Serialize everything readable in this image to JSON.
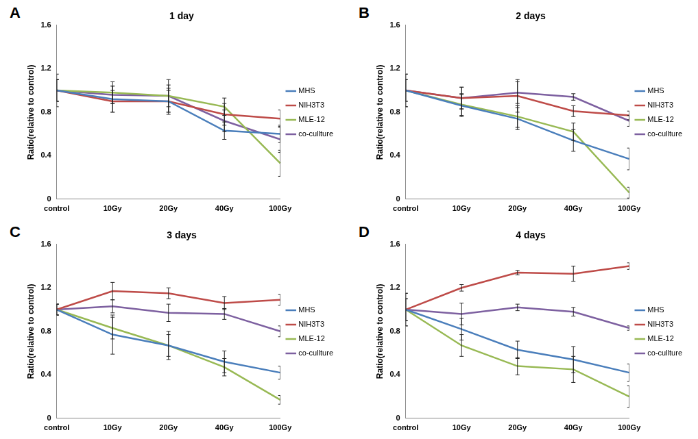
{
  "chart_data": [
    {
      "panel": "A",
      "type": "line",
      "title": "1 day",
      "y_label": "Ratio(relative to control)",
      "categories": [
        "control",
        "10Gy",
        "20Gy",
        "40Gy",
        "100Gy"
      ],
      "ylim": [
        0,
        1.6
      ],
      "yticks": [
        0,
        0.4,
        0.8,
        1.2,
        1.6
      ],
      "grid": false,
      "legend": "right",
      "marker": "none",
      "line_style": "solid",
      "series": [
        {
          "name": "MHS",
          "color": "#4a7ebb",
          "values": [
            1.0,
            0.92,
            0.9,
            0.63,
            0.6
          ],
          "errors": [
            0.15,
            0.12,
            0.12,
            0.08,
            0.08
          ]
        },
        {
          "name": "NIH3T3",
          "color": "#be4b48",
          "values": [
            1.0,
            0.9,
            0.9,
            0.78,
            0.74
          ],
          "errors": [
            0.1,
            0.1,
            0.1,
            0.1,
            0.08
          ]
        },
        {
          "name": "MLE-12",
          "color": "#98b954",
          "values": [
            1.0,
            0.98,
            0.95,
            0.85,
            0.33
          ],
          "errors": [
            0.1,
            0.1,
            0.15,
            0.08,
            0.12
          ]
        },
        {
          "name": "co-cullture",
          "color": "#7d60a0",
          "values": [
            1.0,
            0.96,
            0.95,
            0.72,
            0.55
          ],
          "errors": [
            0.1,
            0.08,
            0.1,
            0.1,
            0.12
          ]
        }
      ]
    },
    {
      "panel": "B",
      "type": "line",
      "title": "2 days",
      "y_label": "Ratio(relative to control)",
      "categories": [
        "control",
        "10Gy",
        "20Gy",
        "40Gy",
        "100Gy"
      ],
      "ylim": [
        0,
        1.6
      ],
      "yticks": [
        0,
        0.4,
        0.8,
        1.2,
        1.6
      ],
      "grid": false,
      "legend": "right",
      "marker": "none",
      "line_style": "solid",
      "series": [
        {
          "name": "MHS",
          "color": "#4a7ebb",
          "values": [
            1.0,
            0.86,
            0.74,
            0.54,
            0.37
          ],
          "errors": [
            0.15,
            0.1,
            0.1,
            0.1,
            0.1
          ]
        },
        {
          "name": "NIH3T3",
          "color": "#be4b48",
          "values": [
            1.0,
            0.93,
            0.95,
            0.81,
            0.77
          ],
          "errors": [
            0.1,
            0.1,
            0.15,
            0.05,
            0.04
          ]
        },
        {
          "name": "MLE-12",
          "color": "#98b954",
          "values": [
            1.0,
            0.87,
            0.76,
            0.62,
            0.06
          ],
          "errors": [
            0.1,
            0.1,
            0.1,
            0.08,
            0.05
          ]
        },
        {
          "name": "co-cullture",
          "color": "#7d60a0",
          "values": [
            1.0,
            0.93,
            0.98,
            0.94,
            0.72
          ],
          "errors": [
            0.15,
            0.1,
            0.1,
            0.03,
            0.05
          ]
        }
      ]
    },
    {
      "panel": "C",
      "type": "line",
      "title": "3 days",
      "y_label": "Ratio(relative to control)",
      "categories": [
        "control",
        "10Gy",
        "20Gy",
        "40Gy",
        "100Gy"
      ],
      "ylim": [
        0,
        1.6
      ],
      "yticks": [
        0,
        0.4,
        0.8,
        1.2,
        1.6
      ],
      "grid": false,
      "legend": "right",
      "marker": "none",
      "line_style": "solid",
      "series": [
        {
          "name": "MHS",
          "color": "#4a7ebb",
          "values": [
            1.0,
            0.77,
            0.67,
            0.52,
            0.42
          ],
          "errors": [
            0.05,
            0.18,
            0.13,
            0.1,
            0.06
          ]
        },
        {
          "name": "NIH3T3",
          "color": "#be4b48",
          "values": [
            1.0,
            1.17,
            1.15,
            1.06,
            1.09
          ],
          "errors": [
            0.05,
            0.08,
            0.05,
            0.06,
            0.05
          ]
        },
        {
          "name": "MLE-12",
          "color": "#98b954",
          "values": [
            1.0,
            0.83,
            0.67,
            0.47,
            0.17
          ],
          "errors": [
            0.05,
            0.1,
            0.1,
            0.08,
            0.04
          ]
        },
        {
          "name": "co-cullture",
          "color": "#7d60a0",
          "values": [
            1.0,
            1.03,
            0.97,
            0.96,
            0.8
          ],
          "errors": [
            0.05,
            0.06,
            0.08,
            0.05,
            0.05
          ]
        }
      ]
    },
    {
      "panel": "D",
      "type": "line",
      "title": "4 days",
      "y_label": "Ratio(relative to control)",
      "categories": [
        "control",
        "10Gy",
        "20Gy",
        "40Gy",
        "100Gy"
      ],
      "ylim": [
        0,
        1.6
      ],
      "yticks": [
        0,
        0.4,
        0.8,
        1.2,
        1.6
      ],
      "grid": false,
      "legend": "right",
      "marker": "none",
      "line_style": "solid",
      "series": [
        {
          "name": "MHS",
          "color": "#4a7ebb",
          "values": [
            1.0,
            0.82,
            0.63,
            0.54,
            0.42
          ],
          "errors": [
            0.15,
            0.1,
            0.08,
            0.12,
            0.08
          ]
        },
        {
          "name": "NIH3T3",
          "color": "#be4b48",
          "values": [
            1.0,
            1.2,
            1.34,
            1.33,
            1.4
          ],
          "errors": [
            0.15,
            0.03,
            0.02,
            0.07,
            0.03
          ]
        },
        {
          "name": "MLE-12",
          "color": "#98b954",
          "values": [
            1.0,
            0.67,
            0.48,
            0.45,
            0.2
          ],
          "errors": [
            0.1,
            0.1,
            0.08,
            0.12,
            0.1
          ]
        },
        {
          "name": "co-cullture",
          "color": "#7d60a0",
          "values": [
            1.0,
            0.96,
            1.02,
            0.98,
            0.83
          ],
          "errors": [
            0.1,
            0.1,
            0.03,
            0.04,
            0.02
          ]
        }
      ]
    }
  ]
}
